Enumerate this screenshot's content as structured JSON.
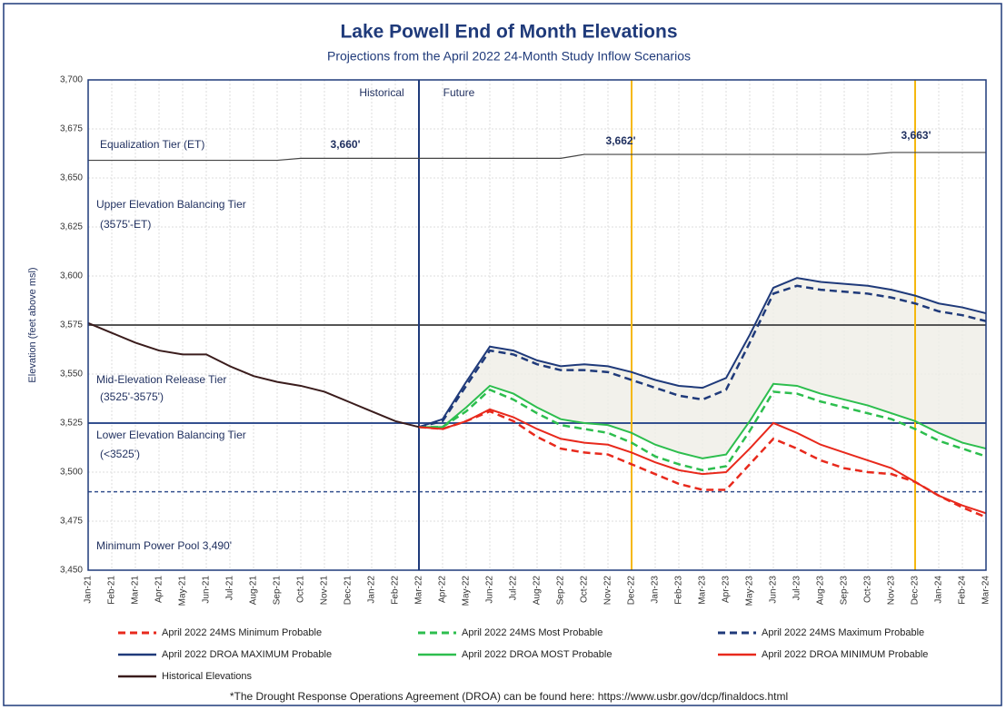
{
  "chart_data": {
    "type": "line",
    "title": "Lake Powell End of Month Elevations",
    "subtitle": "Projections from the April 2022 24-Month Study Inflow Scenarios",
    "y_label": "Elevation (feet above msl)",
    "footnote": "*The Drought Response Operations Agreement (DROA) can be found here: https://www.usbr.gov/dcp/finaldocs.html",
    "categories": [
      "Jan-21",
      "Feb-21",
      "Mar-21",
      "Apr-21",
      "May-21",
      "Jun-21",
      "Jul-21",
      "Aug-21",
      "Sep-21",
      "Oct-21",
      "Nov-21",
      "Dec-21",
      "Jan-22",
      "Feb-22",
      "Mar-22",
      "Apr-22",
      "May-22",
      "Jun-22",
      "Jul-22",
      "Aug-22",
      "Sep-22",
      "Oct-22",
      "Nov-22",
      "Dec-22",
      "Jan-23",
      "Feb-23",
      "Mar-23",
      "Apr-23",
      "May-23",
      "Jun-23",
      "Jul-23",
      "Aug-23",
      "Sep-23",
      "Oct-23",
      "Nov-23",
      "Dec-23",
      "Jan-24",
      "Feb-24",
      "Mar-24"
    ],
    "ylim": [
      3450,
      3700
    ],
    "yticks": [
      {
        "value": 3450,
        "label": "3,450"
      },
      {
        "value": 3475,
        "label": "3,475"
      },
      {
        "value": 3500,
        "label": "3,500"
      },
      {
        "value": 3525,
        "label": "3,525"
      },
      {
        "value": 3550,
        "label": "3,550"
      },
      {
        "value": 3575,
        "label": "3,575"
      },
      {
        "value": 3600,
        "label": "3,600"
      },
      {
        "value": 3625,
        "label": "3,625"
      },
      {
        "value": 3650,
        "label": "3,650"
      },
      {
        "value": 3675,
        "label": "3,675"
      },
      {
        "value": 3700,
        "label": "3,700"
      }
    ],
    "grid": true,
    "series": [
      {
        "name": "April 2022 24MS Minimum Probable",
        "color": "#e8291c",
        "dashed": true,
        "values": [
          null,
          null,
          null,
          null,
          null,
          null,
          null,
          null,
          null,
          null,
          null,
          null,
          null,
          null,
          3523,
          3522,
          3526,
          3531,
          3526,
          3518,
          3512,
          3510,
          3509,
          3504,
          3499,
          3494,
          3491,
          3491,
          3504,
          3517,
          3512,
          3506,
          3502,
          3500,
          3499,
          3495,
          3488,
          3482,
          3477
        ]
      },
      {
        "name": "April 2022 24MS Most Probable",
        "color": "#2dbe4e",
        "dashed": true,
        "values": [
          null,
          null,
          null,
          null,
          null,
          null,
          null,
          null,
          null,
          null,
          null,
          null,
          null,
          null,
          3523,
          3523,
          3531,
          3542,
          3537,
          3530,
          3524,
          3522,
          3520,
          3515,
          3508,
          3504,
          3501,
          3503,
          3521,
          3541,
          3540,
          3536,
          3533,
          3530,
          3527,
          3522,
          3516,
          3512,
          3508
        ]
      },
      {
        "name": "April 2022 24MS Maximum Probable",
        "color": "#1f3a7a",
        "dashed": true,
        "values": [
          null,
          null,
          null,
          null,
          null,
          null,
          null,
          null,
          null,
          null,
          null,
          null,
          null,
          null,
          3523,
          3526,
          3544,
          3562,
          3560,
          3555,
          3552,
          3552,
          3551,
          3547,
          3543,
          3539,
          3537,
          3542,
          3566,
          3591,
          3595,
          3593,
          3592,
          3591,
          3589,
          3586,
          3582,
          3580,
          3577
        ]
      },
      {
        "name": "April 2022 DROA MAXIMUM Probable",
        "color": "#1f3a7a",
        "dashed": false,
        "values": [
          null,
          null,
          null,
          null,
          null,
          null,
          null,
          null,
          null,
          null,
          null,
          null,
          null,
          null,
          3523,
          3527,
          3546,
          3564,
          3562,
          3557,
          3554,
          3555,
          3554,
          3551,
          3547,
          3544,
          3543,
          3548,
          3570,
          3594,
          3599,
          3597,
          3596,
          3595,
          3593,
          3590,
          3586,
          3584,
          3581
        ]
      },
      {
        "name": "April 2022 DROA MOST Probable",
        "color": "#2dbe4e",
        "dashed": false,
        "values": [
          null,
          null,
          null,
          null,
          null,
          null,
          null,
          null,
          null,
          null,
          null,
          null,
          null,
          null,
          3523,
          3523,
          3533,
          3544,
          3540,
          3533,
          3527,
          3525,
          3524,
          3520,
          3514,
          3510,
          3507,
          3509,
          3526,
          3545,
          3544,
          3540,
          3537,
          3534,
          3530,
          3526,
          3520,
          3515,
          3512
        ]
      },
      {
        "name": "April 2022 DROA MINIMUM Probable",
        "color": "#e8291c",
        "dashed": false,
        "values": [
          null,
          null,
          null,
          null,
          null,
          null,
          null,
          null,
          null,
          null,
          null,
          null,
          null,
          null,
          3523,
          3522,
          3526,
          3532,
          3528,
          3522,
          3517,
          3515,
          3514,
          3510,
          3505,
          3501,
          3499,
          3500,
          3512,
          3525,
          3520,
          3514,
          3510,
          3506,
          3502,
          3495,
          3488,
          3483,
          3479
        ]
      },
      {
        "name": "Historical Elevations",
        "color": "#3a1c1c",
        "dashed": false,
        "values": [
          3576,
          3571,
          3566,
          3562,
          3560,
          3560,
          3554,
          3549,
          3546,
          3544,
          3541,
          3536,
          3531,
          3526,
          3523,
          null,
          null,
          null,
          null,
          null,
          null,
          null,
          null,
          null,
          null,
          null,
          null,
          null,
          null,
          null,
          null,
          null,
          null,
          null,
          null,
          null,
          null,
          null,
          null
        ]
      }
    ],
    "equalization_tier": [
      3659,
      3659,
      3659,
      3659,
      3659,
      3659,
      3659,
      3659,
      3659,
      3660,
      3660,
      3660,
      3660,
      3660,
      3660,
      3660,
      3660,
      3660,
      3660,
      3660,
      3660,
      3662,
      3662,
      3662,
      3662,
      3662,
      3662,
      3662,
      3662,
      3662,
      3662,
      3662,
      3662,
      3662,
      3663,
      3663,
      3663,
      3663,
      3663
    ],
    "hlines": [
      {
        "value": 3575,
        "color": "#555555",
        "dashed": false
      },
      {
        "value": 3525,
        "color": "#34508f",
        "dashed": false
      },
      {
        "value": 3490,
        "color": "#34508f",
        "dashed": true
      }
    ],
    "vlines": [
      {
        "category": "Mar-22",
        "color": "#1f3a7a"
      },
      {
        "category": "Dec-22",
        "color": "#f5b80f"
      },
      {
        "category": "Dec-23",
        "color": "#f5b80f"
      }
    ],
    "annotations": [
      "Historical",
      "Future",
      "Equalization Tier (ET)",
      "3,660'",
      "3,662'",
      "3,663'",
      "Upper Elevation Balancing Tier",
      "(3575'-ET)",
      "Mid-Elevation Release Tier",
      "(3525'-3575')",
      "Lower Elevation Balancing Tier",
      "(<3525')",
      "Minimum Power Pool  3,490'"
    ]
  }
}
